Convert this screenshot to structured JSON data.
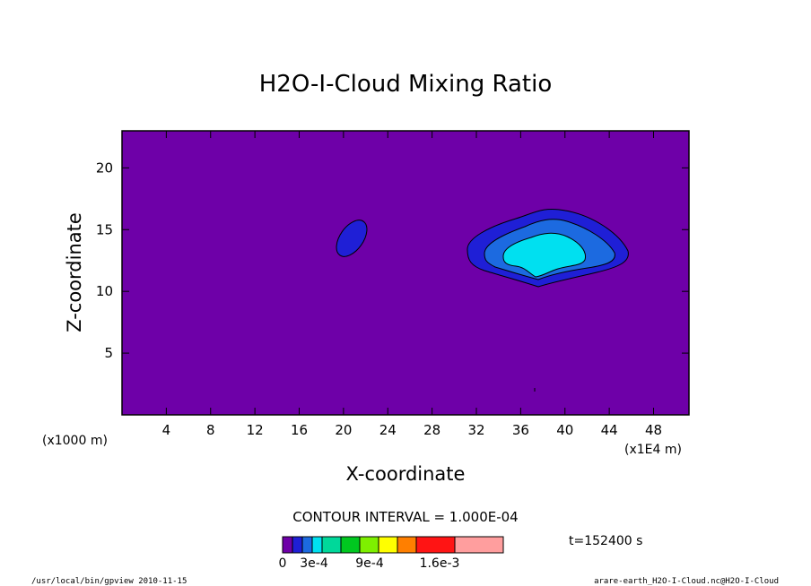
{
  "chart_data": {
    "type": "contour",
    "title": "H2O-I-Cloud Mixing Ratio",
    "xlabel": "X-coordinate",
    "ylabel": "Z-coordinate",
    "x_unit_label": "(x1E4 m)",
    "y_unit_label": "(x1000 m)",
    "xlim": [
      0,
      51.2
    ],
    "ylim": [
      0,
      23
    ],
    "xticks": [
      "4",
      "8",
      "12",
      "16",
      "20",
      "24",
      "28",
      "32",
      "36",
      "40",
      "44",
      "48"
    ],
    "yticks": [
      "5",
      "10",
      "15",
      "20"
    ],
    "contour_interval_text": "CONTOUR INTERVAL = 1.000E-04",
    "time_text": "t=152400 s",
    "colorbar": {
      "colors": [
        "#6e00a8",
        "#1f1fd6",
        "#1c6ae0",
        "#00e0f0",
        "#00d89a",
        "#00c820",
        "#7ef000",
        "#ffff00",
        "#ff7f00",
        "#ff1414",
        "#ff9e9e"
      ],
      "labels": [
        "0",
        "3e-4",
        "9e-4",
        "1.6e-3"
      ]
    },
    "colors": {
      "background": "#6e00a8",
      "level1": "#1f1fd6",
      "level2": "#1c6ae0",
      "level3": "#00e0f0"
    },
    "footer_left": "/usr/local/bin/gpview  2010-11-15",
    "footer_right": "arare-earth_H2O-I-Cloud.nc@H2O-I-Cloud"
  }
}
